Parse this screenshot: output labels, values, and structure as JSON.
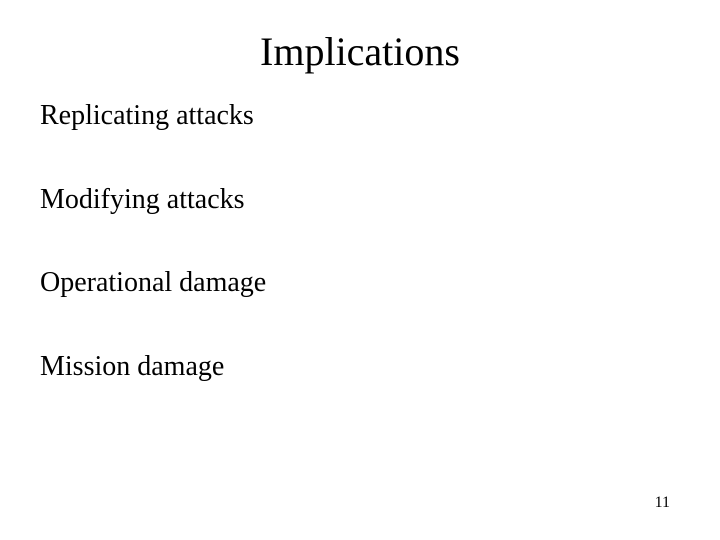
{
  "slide": {
    "title": "Implications",
    "bullets": [
      "Replicating attacks",
      "Modifying attacks",
      "Operational damage",
      "Mission damage"
    ],
    "page_number": "11",
    "background_color": "#ffffff",
    "text_color": "#000000",
    "title_fontsize": 40,
    "bullet_fontsize": 28,
    "pagenum_fontsize": 16,
    "font_family": "Times New Roman"
  }
}
